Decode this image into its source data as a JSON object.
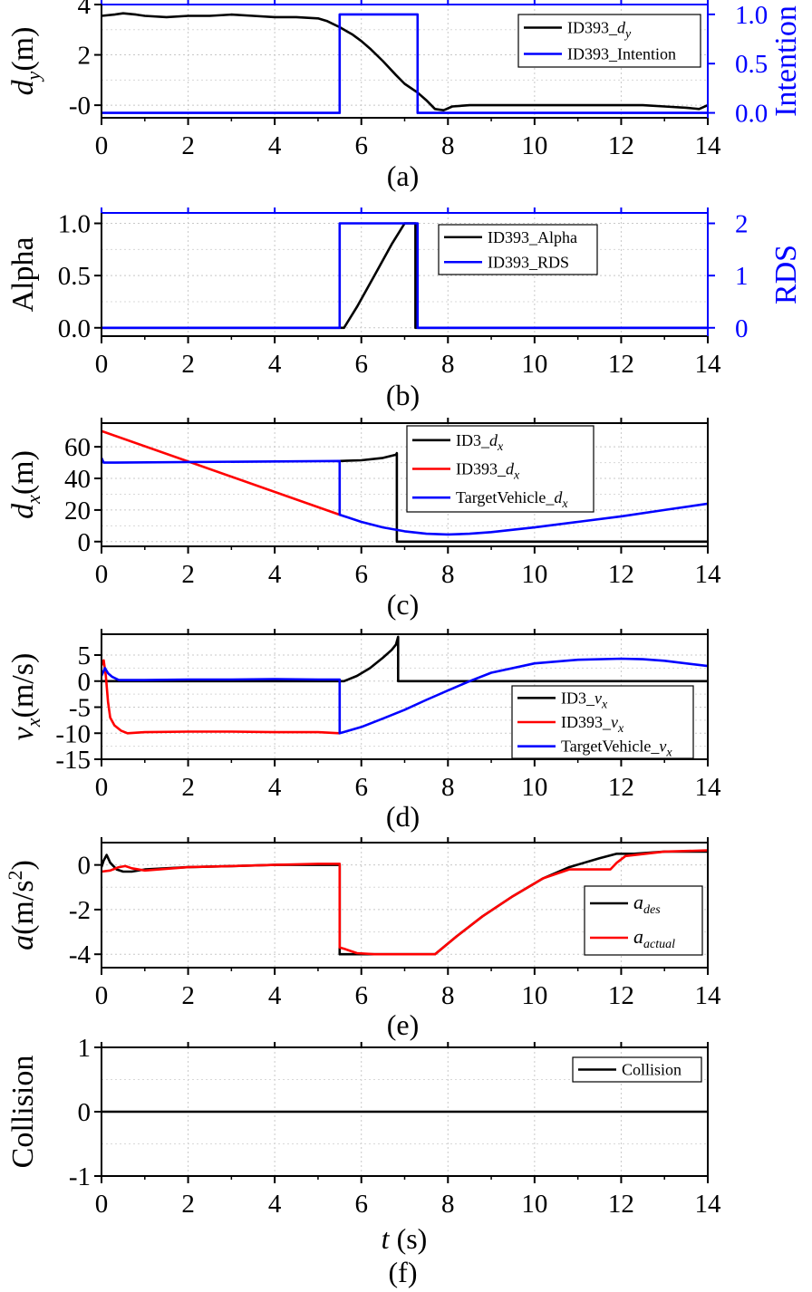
{
  "figure": {
    "x_tick_labels": [
      "0",
      "2",
      "4",
      "6",
      "8",
      "10",
      "12",
      "14"
    ],
    "x_axis_label": {
      "italic": "t",
      "unit": " (s)"
    }
  },
  "chart_data": [
    {
      "id": "a",
      "type": "line",
      "caption": "(a)",
      "xlim": [
        0,
        14
      ],
      "ylim": [
        -0.5,
        4
      ],
      "y2lim": [
        -0.05,
        1.1
      ],
      "y_label": {
        "main": "d",
        "sub": "y",
        "unit": "(m)"
      },
      "y_ticks": [
        "-0",
        "2",
        "4"
      ],
      "y_tick_values": [
        0,
        2,
        4
      ],
      "y2_label": "Intention",
      "y2_color": "#0000ff",
      "y2_ticks": [
        "0.0",
        "0.5",
        "1.0"
      ],
      "y2_tick_values": [
        0,
        0.5,
        1.0
      ],
      "legend": [
        {
          "text": "ID393_",
          "sub": "d",
          "subsub": "y",
          "color": "#000000"
        },
        {
          "text": "ID393_Intention",
          "color": "#0000ff"
        }
      ],
      "series": [
        {
          "name": "ID393_d_y",
          "axis": "y",
          "color": "#000000",
          "x": [
            0,
            0.3,
            0.5,
            0.8,
            1,
            1.5,
            2,
            2.5,
            3,
            3.5,
            4,
            4.5,
            5,
            5.2,
            5.5,
            5.8,
            6,
            6.2,
            6.5,
            6.8,
            7,
            7.3,
            7.5,
            7.7,
            7.9,
            8.1,
            8.5,
            9,
            10,
            11,
            12,
            12.5,
            13,
            13.5,
            13.8,
            14
          ],
          "y": [
            3.55,
            3.6,
            3.65,
            3.6,
            3.55,
            3.5,
            3.55,
            3.55,
            3.6,
            3.55,
            3.5,
            3.5,
            3.45,
            3.35,
            3.1,
            2.8,
            2.55,
            2.25,
            1.75,
            1.2,
            0.85,
            0.5,
            0.2,
            -0.15,
            -0.2,
            -0.05,
            0.0,
            0.0,
            0.0,
            0.0,
            0.0,
            0.0,
            -0.05,
            -0.1,
            -0.15,
            0.0
          ]
        },
        {
          "name": "ID393_Intention",
          "axis": "y2",
          "color": "#0000ff",
          "step": true,
          "x": [
            0,
            5.5,
            5.5,
            7.3,
            7.3,
            14
          ],
          "y": [
            0,
            0,
            1,
            1,
            0,
            0
          ]
        }
      ]
    },
    {
      "id": "b",
      "type": "line",
      "caption": "(b)",
      "xlim": [
        0,
        14
      ],
      "ylim": [
        -0.08,
        1.1
      ],
      "y2lim": [
        -0.16,
        2.2
      ],
      "y_label": {
        "main": "Alpha"
      },
      "y_ticks": [
        "0.0",
        "0.5",
        "1.0"
      ],
      "y_tick_values": [
        0,
        0.5,
        1.0
      ],
      "y2_label": "RDS",
      "y2_color": "#0000ff",
      "y2_ticks": [
        "0",
        "1",
        "2"
      ],
      "y2_tick_values": [
        0,
        1,
        2
      ],
      "legend": [
        {
          "text": "ID393_Alpha",
          "color": "#000000"
        },
        {
          "text": "ID393_RDS",
          "color": "#0000ff"
        }
      ],
      "series": [
        {
          "name": "ID393_Alpha",
          "axis": "y",
          "color": "#000000",
          "x": [
            0,
            5.6,
            5.9,
            6.3,
            6.7,
            7.0,
            7.25,
            7.25,
            14
          ],
          "y": [
            0,
            0,
            0.2,
            0.5,
            0.8,
            1.0,
            1.0,
            0,
            0
          ]
        },
        {
          "name": "ID393_RDS",
          "axis": "y2",
          "color": "#0000ff",
          "x": [
            0,
            5.5,
            5.5,
            7.3,
            7.3,
            14
          ],
          "y": [
            0,
            0,
            2,
            2,
            0,
            0
          ]
        }
      ]
    },
    {
      "id": "c",
      "type": "line",
      "caption": "(c)",
      "xlim": [
        0,
        14
      ],
      "ylim": [
        -3,
        75
      ],
      "y_label": {
        "main": "d",
        "sub": "x",
        "unit": "(m)"
      },
      "y_ticks": [
        "0",
        "20",
        "40",
        "60"
      ],
      "y_tick_values": [
        0,
        20,
        40,
        60
      ],
      "legend": [
        {
          "text": "ID3_",
          "sub": "d",
          "subsub": "x",
          "color": "#000000"
        },
        {
          "text": "ID393_",
          "sub": "d",
          "subsub": "x",
          "color": "#ff0000"
        },
        {
          "text": "TargetVehicle_",
          "sub": "d",
          "subsub": "x",
          "color": "#0000ff"
        }
      ],
      "series": [
        {
          "name": "ID3_d_x",
          "axis": "y",
          "color": "#000000",
          "x": [
            5.5,
            6.0,
            6.5,
            6.8,
            6.82,
            6.82,
            14
          ],
          "y": [
            51,
            51.5,
            53,
            55,
            56,
            0,
            0
          ]
        },
        {
          "name": "ID393_d_x",
          "axis": "y",
          "color": "#ff0000",
          "x": [
            0,
            5.5
          ],
          "y": [
            70,
            17
          ]
        },
        {
          "name": "TargetVehicle_d_x",
          "axis": "y",
          "color": "#0000ff",
          "x": [
            0,
            0.05,
            0.1,
            5.5,
            5.5,
            6.0,
            6.5,
            7.0,
            7.5,
            8.0,
            8.5,
            9,
            10,
            11,
            12,
            13,
            14
          ],
          "y": [
            53,
            50,
            50,
            51,
            17,
            12.5,
            9,
            6.5,
            5,
            4.5,
            5,
            6,
            9,
            12.5,
            16,
            20,
            24
          ]
        }
      ]
    },
    {
      "id": "d",
      "type": "line",
      "caption": "(d)",
      "xlim": [
        0,
        14
      ],
      "ylim": [
        -15,
        9
      ],
      "y_label": {
        "main": "v",
        "sub": "x",
        "unit": "(m/s)"
      },
      "y_ticks": [
        "-15",
        "-10",
        "-5",
        "0",
        "5"
      ],
      "y_tick_values": [
        -15,
        -10,
        -5,
        0,
        5
      ],
      "legend": [
        {
          "text": "ID3_",
          "sub": "v",
          "subsub": "x",
          "color": "#000000"
        },
        {
          "text": "ID393_",
          "sub": "v",
          "subsub": "x",
          "color": "#ff0000"
        },
        {
          "text": "TargetVehicle_",
          "sub": "v",
          "subsub": "x",
          "color": "#0000ff"
        }
      ],
      "series": [
        {
          "name": "ID3_v_x",
          "axis": "y",
          "color": "#000000",
          "x": [
            0,
            5.6,
            5.9,
            6.2,
            6.5,
            6.7,
            6.8,
            6.85,
            6.85,
            14
          ],
          "y": [
            0,
            0,
            1,
            2.5,
            4.5,
            6,
            7,
            8.5,
            0,
            0
          ]
        },
        {
          "name": "ID393_v_x",
          "axis": "y",
          "color": "#ff0000",
          "x": [
            0,
            0.05,
            0.1,
            0.15,
            0.2,
            0.3,
            0.45,
            0.6,
            0.8,
            1,
            2,
            3,
            4,
            5,
            5.5
          ],
          "y": [
            3,
            4,
            1,
            -4,
            -7,
            -8.5,
            -9.5,
            -10,
            -9.9,
            -9.8,
            -9.7,
            -9.7,
            -9.8,
            -9.8,
            -10
          ]
        },
        {
          "name": "TargetVehicle_v_x",
          "axis": "y",
          "color": "#0000ff",
          "x": [
            0,
            0.08,
            0.15,
            0.25,
            0.4,
            1,
            2,
            3,
            4,
            5,
            5.5,
            5.5,
            6,
            6.5,
            7,
            7.5,
            8,
            8.5,
            9,
            10,
            11,
            12,
            12.5,
            13,
            14
          ],
          "y": [
            1,
            2.5,
            1.5,
            0.8,
            0.2,
            0.2,
            0.3,
            0.3,
            0.4,
            0.3,
            0.3,
            -10,
            -8.8,
            -7.2,
            -5.5,
            -3.6,
            -1.8,
            0,
            1.6,
            3.4,
            4.1,
            4.3,
            4.2,
            3.9,
            2.9
          ]
        }
      ]
    },
    {
      "id": "e",
      "type": "line",
      "caption": "(e)",
      "xlim": [
        0,
        14
      ],
      "ylim": [
        -4.6,
        1
      ],
      "y_label": {
        "main": "a",
        "unit": "(m/s",
        "sup": "2",
        "close": ")"
      },
      "y_ticks": [
        "-4",
        "-2",
        "0"
      ],
      "y_tick_values": [
        -4,
        -2,
        0
      ],
      "legend": [
        {
          "text": "",
          "sub": "a",
          "subsub": "des",
          "color": "#000000"
        },
        {
          "text": "",
          "sub": "a",
          "subsub": "actual",
          "color": "#ff0000"
        }
      ],
      "series": [
        {
          "name": "a_des",
          "axis": "y",
          "color": "#000000",
          "x": [
            0,
            0.05,
            0.12,
            0.2,
            0.35,
            0.5,
            0.7,
            1,
            2,
            3,
            4,
            5,
            5.5,
            5.5,
            6,
            7,
            7.7,
            8.2,
            8.8,
            9.5,
            10.2,
            10.8,
            11.5,
            11.9,
            12.3,
            13,
            14
          ],
          "y": [
            -0.1,
            0.2,
            0.45,
            0.1,
            -0.2,
            -0.3,
            -0.3,
            -0.2,
            -0.1,
            -0.05,
            0,
            0,
            0,
            -4,
            -4,
            -4,
            -4,
            -3.2,
            -2.3,
            -1.4,
            -0.6,
            -0.1,
            0.3,
            0.5,
            0.5,
            0.6,
            0.6
          ]
        },
        {
          "name": "a_actual",
          "axis": "y",
          "color": "#ff0000",
          "x": [
            0,
            0.2,
            0.4,
            0.55,
            0.7,
            1,
            2,
            3,
            4,
            5,
            5.5,
            5.5,
            5.6,
            5.9,
            6.3,
            7,
            7.7,
            8.2,
            8.8,
            9.5,
            10.2,
            10.8,
            11.3,
            11.75,
            11.9,
            12.1,
            13,
            14
          ],
          "y": [
            -0.3,
            -0.25,
            -0.1,
            -0.05,
            -0.15,
            -0.25,
            -0.1,
            -0.05,
            0,
            0.05,
            0.05,
            -3.7,
            -3.75,
            -3.95,
            -4,
            -4,
            -4,
            -3.2,
            -2.3,
            -1.4,
            -0.6,
            -0.2,
            -0.2,
            -0.2,
            0.1,
            0.4,
            0.6,
            0.65
          ]
        }
      ]
    },
    {
      "id": "f",
      "type": "line",
      "caption": "(f)",
      "xlim": [
        0,
        14
      ],
      "ylim": [
        -1,
        1
      ],
      "y_label": {
        "main": "Collision"
      },
      "y_ticks": [
        "-1",
        "0",
        "1"
      ],
      "y_tick_values": [
        -1,
        0,
        1
      ],
      "legend": [
        {
          "text": "Collision",
          "color": "#000000"
        }
      ],
      "series": [
        {
          "name": "Collision",
          "axis": "y",
          "color": "#000000",
          "x": [
            0,
            14
          ],
          "y": [
            0,
            0
          ]
        }
      ]
    }
  ]
}
